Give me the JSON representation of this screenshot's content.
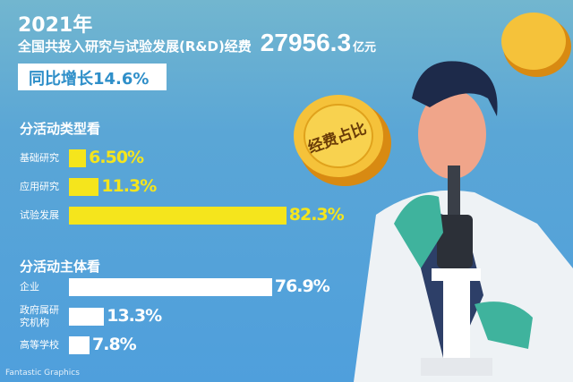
{
  "header": {
    "year": "2021年",
    "subtitle": "全国共投入研究与试验发展(R&D)经费",
    "amount": "27956.3",
    "unit": "亿元",
    "growth": "同比增长14.6%"
  },
  "coin_label": "经费占比",
  "watermark": "Fantastic Graphics",
  "chart_data": [
    {
      "type": "bar",
      "title": "分活动类型看",
      "orientation": "horizontal",
      "categories": [
        "基础研究",
        "应用研究",
        "试验发展"
      ],
      "values": [
        6.5,
        11.3,
        82.3
      ],
      "labels": [
        "6.50%",
        "11.3%",
        "82.3%"
      ],
      "unit": "%",
      "color": "#f5e51c"
    },
    {
      "type": "bar",
      "title": "分活动主体看",
      "orientation": "horizontal",
      "categories": [
        "企业",
        "政府属研究机构",
        "高等学校"
      ],
      "values": [
        76.9,
        13.3,
        7.8
      ],
      "labels": [
        "76.9%",
        "13.3%",
        "7.8%"
      ],
      "unit": "%",
      "color": "#ffffff"
    }
  ]
}
